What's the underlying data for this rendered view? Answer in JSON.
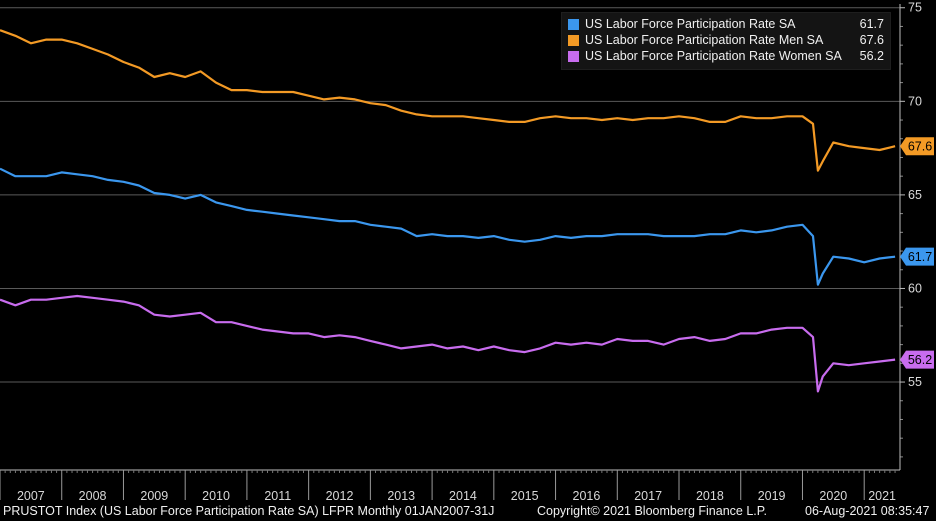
{
  "chart_data": {
    "type": "line",
    "title": "",
    "xlabel": "",
    "ylabel": "",
    "ylim": [
      50.3,
      75.2
    ],
    "xlim": [
      2007.0,
      2021.58
    ],
    "x_ticks": [
      "2007",
      "2008",
      "2009",
      "2010",
      "2011",
      "2012",
      "2013",
      "2014",
      "2015",
      "2016",
      "2017",
      "2018",
      "2019",
      "2020",
      "2021"
    ],
    "y_ticks": [
      55,
      60,
      65,
      70,
      75
    ],
    "grid": true,
    "legend_position": "top-right",
    "series": [
      {
        "name": "US Labor Force Participation Rate SA",
        "color": "#3b97ee",
        "last_value": "61.7",
        "x": [
          2007.0,
          2007.25,
          2007.5,
          2007.75,
          2008.0,
          2008.25,
          2008.5,
          2008.75,
          2009.0,
          2009.25,
          2009.5,
          2009.75,
          2010.0,
          2010.25,
          2010.5,
          2010.75,
          2011.0,
          2011.25,
          2011.5,
          2011.75,
          2012.0,
          2012.25,
          2012.5,
          2012.75,
          2013.0,
          2013.25,
          2013.5,
          2013.75,
          2014.0,
          2014.25,
          2014.5,
          2014.75,
          2015.0,
          2015.25,
          2015.5,
          2015.75,
          2016.0,
          2016.25,
          2016.5,
          2016.75,
          2017.0,
          2017.25,
          2017.5,
          2017.75,
          2018.0,
          2018.25,
          2018.5,
          2018.75,
          2019.0,
          2019.25,
          2019.5,
          2019.75,
          2020.0,
          2020.17,
          2020.25,
          2020.33,
          2020.5,
          2020.75,
          2021.0,
          2021.25,
          2021.5
        ],
        "y": [
          66.4,
          66.0,
          66.0,
          66.0,
          66.2,
          66.1,
          66.0,
          65.8,
          65.7,
          65.5,
          65.1,
          65.0,
          64.8,
          65.0,
          64.6,
          64.4,
          64.2,
          64.1,
          64.0,
          63.9,
          63.8,
          63.7,
          63.6,
          63.6,
          63.4,
          63.3,
          63.2,
          62.8,
          62.9,
          62.8,
          62.8,
          62.7,
          62.8,
          62.6,
          62.5,
          62.6,
          62.8,
          62.7,
          62.8,
          62.8,
          62.9,
          62.9,
          62.9,
          62.8,
          62.8,
          62.8,
          62.9,
          62.9,
          63.1,
          63.0,
          63.1,
          63.3,
          63.4,
          62.8,
          60.2,
          60.8,
          61.7,
          61.6,
          61.4,
          61.6,
          61.7
        ]
      },
      {
        "name": "US Labor Force Participation Rate Men SA",
        "color": "#f39a25",
        "last_value": "67.6",
        "x": [
          2007.0,
          2007.25,
          2007.5,
          2007.75,
          2008.0,
          2008.25,
          2008.5,
          2008.75,
          2009.0,
          2009.25,
          2009.5,
          2009.75,
          2010.0,
          2010.25,
          2010.5,
          2010.75,
          2011.0,
          2011.25,
          2011.5,
          2011.75,
          2012.0,
          2012.25,
          2012.5,
          2012.75,
          2013.0,
          2013.25,
          2013.5,
          2013.75,
          2014.0,
          2014.25,
          2014.5,
          2014.75,
          2015.0,
          2015.25,
          2015.5,
          2015.75,
          2016.0,
          2016.25,
          2016.5,
          2016.75,
          2017.0,
          2017.25,
          2017.5,
          2017.75,
          2018.0,
          2018.25,
          2018.5,
          2018.75,
          2019.0,
          2019.25,
          2019.5,
          2019.75,
          2020.0,
          2020.17,
          2020.25,
          2020.33,
          2020.5,
          2020.75,
          2021.0,
          2021.25,
          2021.5
        ],
        "y": [
          73.8,
          73.5,
          73.1,
          73.3,
          73.3,
          73.1,
          72.8,
          72.5,
          72.1,
          71.8,
          71.3,
          71.5,
          71.3,
          71.6,
          71.0,
          70.6,
          70.6,
          70.5,
          70.5,
          70.5,
          70.3,
          70.1,
          70.2,
          70.1,
          69.9,
          69.8,
          69.5,
          69.3,
          69.2,
          69.2,
          69.2,
          69.1,
          69.0,
          68.9,
          68.9,
          69.1,
          69.2,
          69.1,
          69.1,
          69.0,
          69.1,
          69.0,
          69.1,
          69.1,
          69.2,
          69.1,
          68.9,
          68.9,
          69.2,
          69.1,
          69.1,
          69.2,
          69.2,
          68.8,
          66.3,
          66.8,
          67.8,
          67.6,
          67.5,
          67.4,
          67.6
        ]
      },
      {
        "name": "US Labor Force Participation Rate Women SA",
        "color": "#c86cee",
        "last_value": "56.2",
        "x": [
          2007.0,
          2007.25,
          2007.5,
          2007.75,
          2008.0,
          2008.25,
          2008.5,
          2008.75,
          2009.0,
          2009.25,
          2009.5,
          2009.75,
          2010.0,
          2010.25,
          2010.5,
          2010.75,
          2011.0,
          2011.25,
          2011.5,
          2011.75,
          2012.0,
          2012.25,
          2012.5,
          2012.75,
          2013.0,
          2013.25,
          2013.5,
          2013.75,
          2014.0,
          2014.25,
          2014.5,
          2014.75,
          2015.0,
          2015.25,
          2015.5,
          2015.75,
          2016.0,
          2016.25,
          2016.5,
          2016.75,
          2017.0,
          2017.25,
          2017.5,
          2017.75,
          2018.0,
          2018.25,
          2018.5,
          2018.75,
          2019.0,
          2019.25,
          2019.5,
          2019.75,
          2020.0,
          2020.17,
          2020.25,
          2020.33,
          2020.5,
          2020.75,
          2021.0,
          2021.25,
          2021.5
        ],
        "y": [
          59.4,
          59.1,
          59.4,
          59.4,
          59.5,
          59.6,
          59.5,
          59.4,
          59.3,
          59.1,
          58.6,
          58.5,
          58.6,
          58.7,
          58.2,
          58.2,
          58.0,
          57.8,
          57.7,
          57.6,
          57.6,
          57.4,
          57.5,
          57.4,
          57.2,
          57.0,
          56.8,
          56.9,
          57.0,
          56.8,
          56.9,
          56.7,
          56.9,
          56.7,
          56.6,
          56.8,
          57.1,
          57.0,
          57.1,
          57.0,
          57.3,
          57.2,
          57.2,
          57.0,
          57.3,
          57.4,
          57.2,
          57.3,
          57.6,
          57.6,
          57.8,
          57.9,
          57.9,
          57.4,
          54.5,
          55.3,
          56.0,
          55.9,
          56.0,
          56.1,
          56.2
        ]
      }
    ]
  },
  "footer": {
    "index": "PRUSTOT Index (US Labor Force Participation Rate SA) LFPR  Monthly 01JAN2007-31J",
    "copyright": "Copyright© 2021 Bloomberg Finance L.P.",
    "timestamp": "06-Aug-2021 08:35:47"
  }
}
